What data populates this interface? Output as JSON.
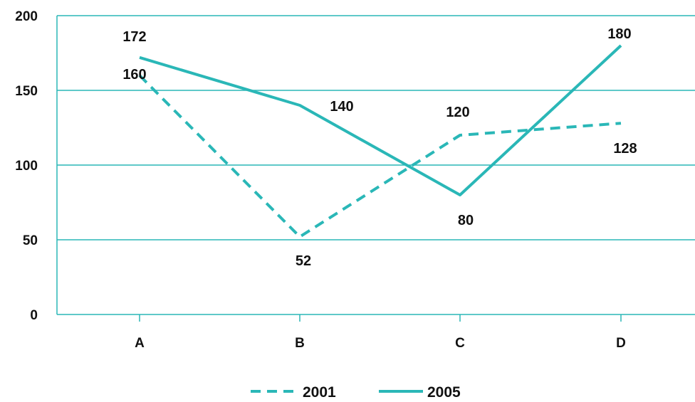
{
  "chart_data": {
    "type": "line",
    "categories": [
      "A",
      "B",
      "C",
      "D"
    ],
    "ylim": [
      0,
      200
    ],
    "yticks": [
      0,
      50,
      100,
      150,
      200
    ],
    "grid": true,
    "legend_position": "bottom-center",
    "series": [
      {
        "name": "2001",
        "style": "dashed",
        "color": "#2ab7b7",
        "values": [
          160,
          52,
          120,
          128
        ]
      },
      {
        "name": "2005",
        "style": "solid",
        "color": "#2ab7b7",
        "values": [
          172,
          140,
          80,
          180
        ]
      }
    ]
  }
}
